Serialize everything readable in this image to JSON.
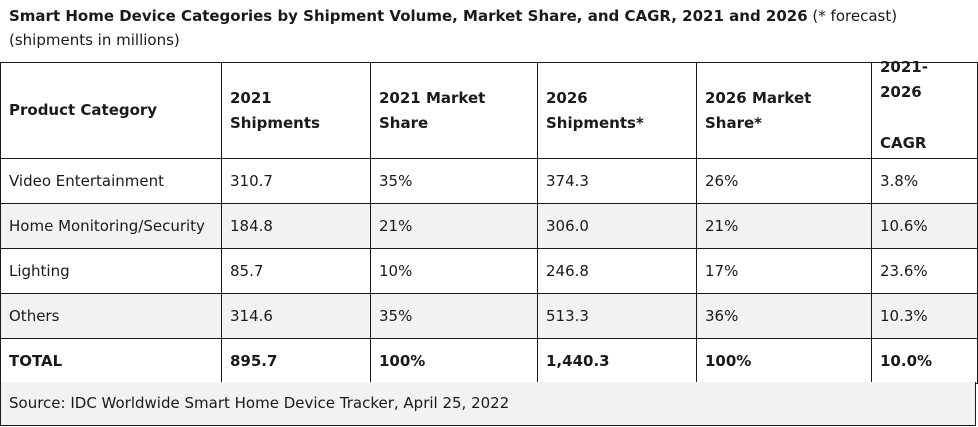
{
  "title": {
    "bold": "Smart Home Device Categories by Shipment Volume, Market Share, and CAGR, 2021 and 2026",
    "normal": " (* forecast) (shipments in millions)"
  },
  "table": {
    "headers": {
      "category": "Product Category",
      "ship2021": "2021 Shipments",
      "share2021": "2021 Market Share",
      "ship2026": "2026 Shipments*",
      "share2026": "2026 Market Share*",
      "cagr_top": "2021-2026",
      "cagr_bottom": "CAGR"
    },
    "rows": [
      {
        "category": "Video Entertainment",
        "ship2021": "310.7",
        "share2021": "35%",
        "ship2026": "374.3",
        "share2026": "26%",
        "cagr": "3.8%"
      },
      {
        "category": "Home Monitoring/Security",
        "ship2021": "184.8",
        "share2021": "21%",
        "ship2026": "306.0",
        "share2026": "21%",
        "cagr": "10.6%"
      },
      {
        "category": "Lighting",
        "ship2021": "85.7",
        "share2021": "10%",
        "ship2026": "246.8",
        "share2026": "17%",
        "cagr": "23.6%"
      },
      {
        "category": "Others",
        "ship2021": "314.6",
        "share2021": "35%",
        "ship2026": "513.3",
        "share2026": "36%",
        "cagr": "10.3%"
      }
    ],
    "total": {
      "category": "TOTAL",
      "ship2021": "895.7",
      "share2021": "100%",
      "ship2026": "1,440.3",
      "share2026": "100%",
      "cagr": "10.0%"
    }
  },
  "source": "Source: IDC Worldwide Smart Home Device Tracker, April 25, 2022"
}
